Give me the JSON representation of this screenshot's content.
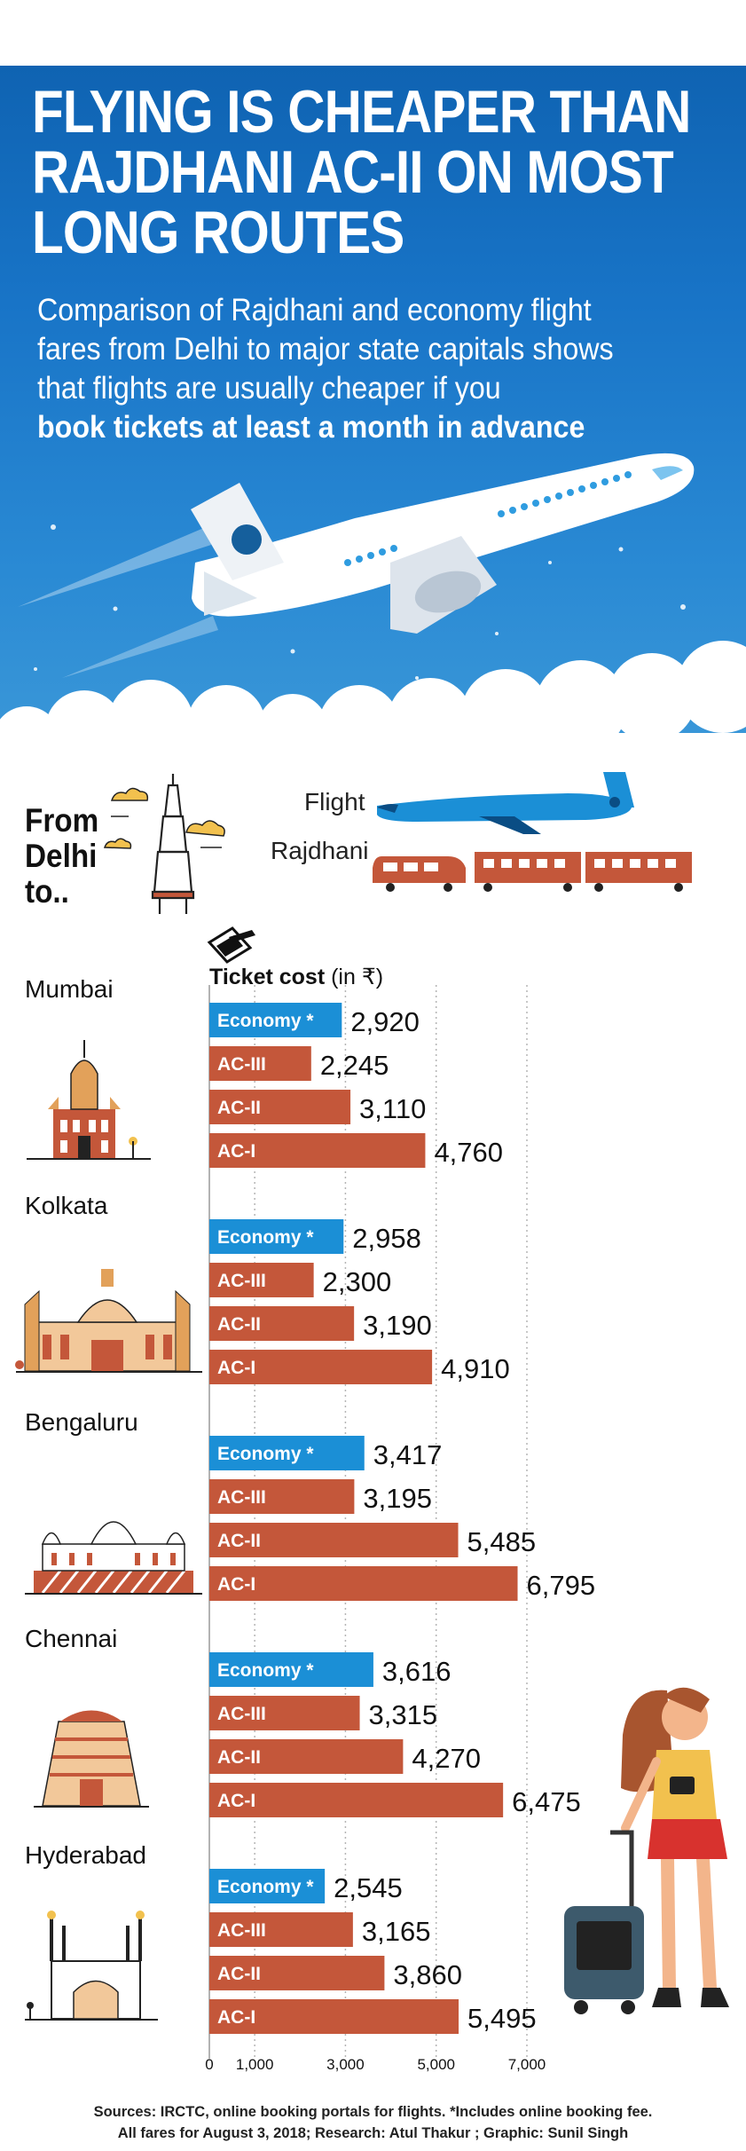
{
  "title_lines": [
    "FLYING IS CHEAPER THAN",
    "RAJDHANI AC-II ON MOST",
    "LONG ROUTES"
  ],
  "subtitle_lines": [
    "Comparison of Rajdhani and economy flight",
    "fares from Delhi to major state capitals shows",
    "that flights are usually cheaper if you"
  ],
  "subtitle_bold": "book tickets at least a month in advance",
  "legend": {
    "flight_label": "Flight",
    "train_label": "Rajdhani"
  },
  "from_label": [
    "From",
    "Delhi",
    "to.."
  ],
  "ticket_label": "Ticket cost",
  "ticket_unit": "(in ₹)",
  "colors": {
    "flight": "#1b8fd6",
    "train": "#c4573a",
    "sky_top": "#0f63b2"
  },
  "chart_data": {
    "type": "bar",
    "orientation": "horizontal",
    "series_names": [
      "Economy *",
      "AC-III",
      "AC-II",
      "AC-I"
    ],
    "cities": [
      {
        "name": "Mumbai",
        "values": [
          2920,
          2245,
          3110,
          4760
        ]
      },
      {
        "name": "Kolkata",
        "values": [
          2958,
          2300,
          3190,
          4910
        ]
      },
      {
        "name": "Bengaluru",
        "values": [
          3417,
          3195,
          5485,
          6795
        ]
      },
      {
        "name": "Chennai",
        "values": [
          3616,
          3315,
          4270,
          6475
        ]
      },
      {
        "name": "Hyderabad",
        "values": [
          2545,
          3165,
          3860,
          5495
        ]
      }
    ],
    "value_labels": [
      [
        "2,920",
        "2,245",
        "3,110",
        "4,760"
      ],
      [
        "2,958",
        "2,300",
        "3,190",
        "4,910"
      ],
      [
        "3,417",
        "3,195",
        "5,485",
        "6,795"
      ],
      [
        "3,616",
        "3,315",
        "4,270",
        "6,475"
      ],
      [
        "2,545",
        "3,165",
        "3,860",
        "5,495"
      ]
    ],
    "x_ticks": [
      0,
      1000,
      3000,
      5000,
      7000
    ],
    "x_tick_labels": [
      "0",
      "1,000",
      "3,000",
      "5,000",
      "7,000"
    ],
    "xlim": [
      0,
      7000
    ],
    "grid": true
  },
  "sources_lines": [
    "Sources: IRCTC, online booking portals for flights. *Includes online booking fee.",
    "All fares for August 3, 2018; Research: Atul Thakur ; Graphic: Sunil Singh"
  ]
}
